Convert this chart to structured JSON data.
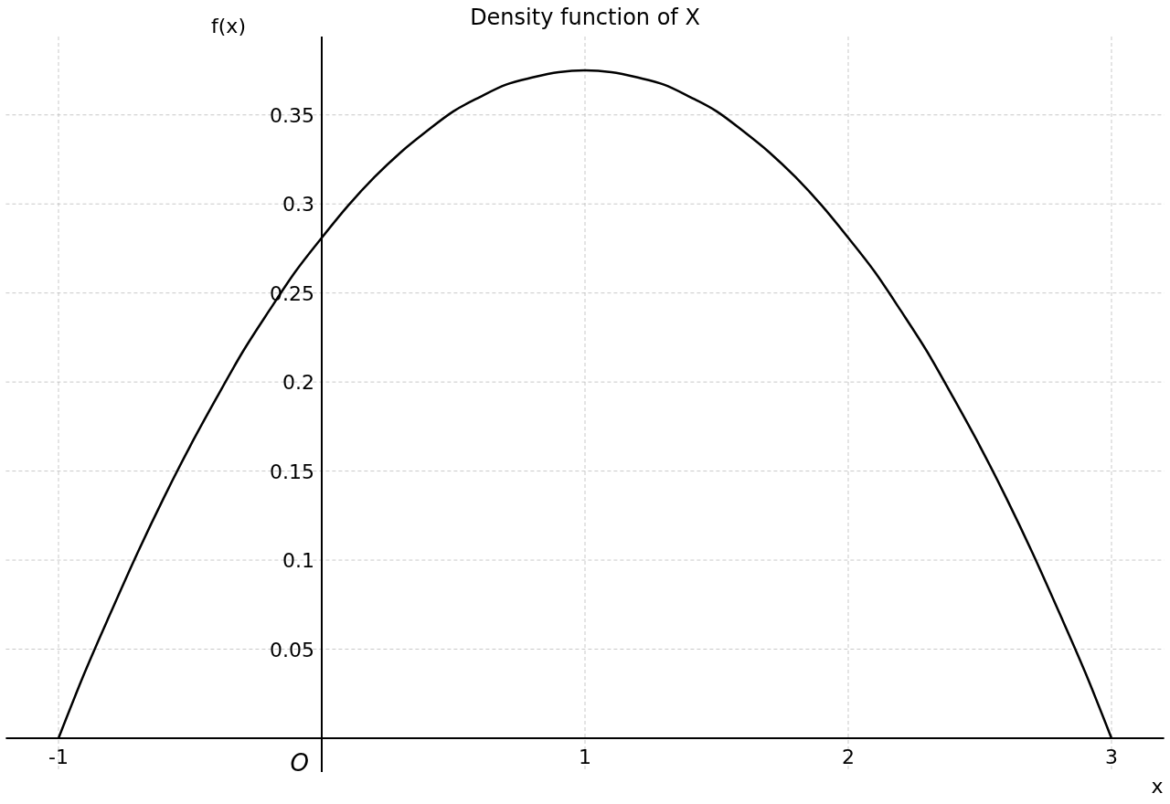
{
  "chart_data": {
    "type": "line",
    "title": "Density function of X",
    "xlabel": "x",
    "ylabel": "f(x)",
    "annotations": [
      "O"
    ],
    "x": [
      -1,
      -0.9,
      -0.8,
      -0.7,
      -0.6,
      -0.5,
      -0.4,
      -0.3,
      -0.2,
      -0.1,
      0,
      0.1,
      0.2,
      0.3,
      0.4,
      0.5,
      0.6,
      0.7,
      0.8,
      0.9,
      1,
      1.1,
      1.2,
      1.3,
      1.4,
      1.5,
      1.6,
      1.7,
      1.8,
      1.9,
      2,
      2.1,
      2.2,
      2.3,
      2.4,
      2.5,
      2.6,
      2.7,
      2.8,
      2.9,
      3
    ],
    "series": [
      {
        "color": "#000000",
        "values": [
          0,
          0.037,
          0.071,
          0.104,
          0.135,
          0.164,
          0.191,
          0.217,
          0.24,
          0.262,
          0.281,
          0.299,
          0.315,
          0.329,
          0.341,
          0.352,
          0.36,
          0.367,
          0.371,
          0.374,
          0.375,
          0.374,
          0.371,
          0.367,
          0.36,
          0.352,
          0.341,
          0.329,
          0.315,
          0.299,
          0.281,
          0.262,
          0.24,
          0.217,
          0.191,
          0.164,
          0.135,
          0.104,
          0.071,
          0.037,
          0
        ]
      }
    ],
    "xlim": [
      -1.2,
      3.2
    ],
    "ylim": [
      -0.019,
      0.394
    ],
    "xticks": [
      -1,
      1,
      2,
      3
    ],
    "yticks": [
      0.05,
      0.1,
      0.15,
      0.2,
      0.25,
      0.3,
      0.35
    ],
    "grid": true,
    "line_style": "solid",
    "marker": "none"
  }
}
